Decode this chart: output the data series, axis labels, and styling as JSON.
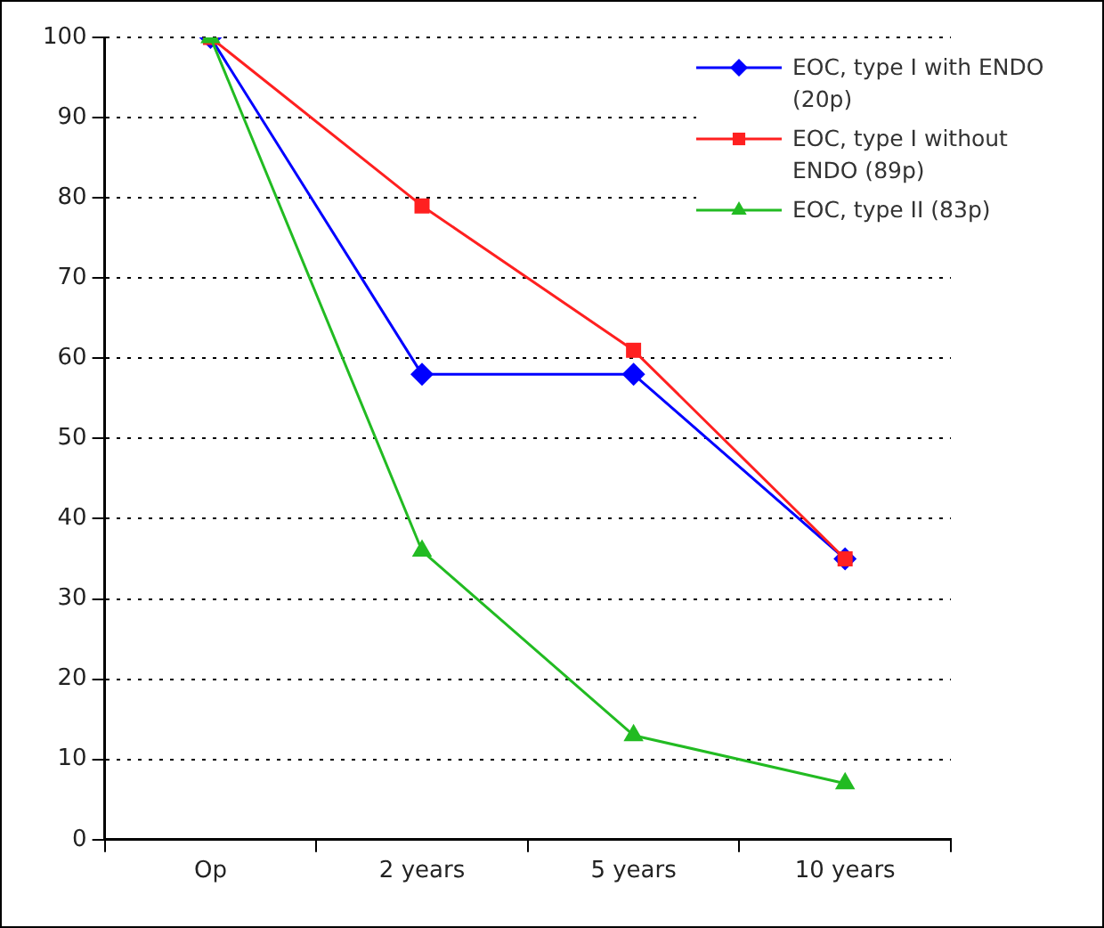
{
  "chart_data": {
    "type": "line",
    "categories": [
      "Op",
      "2 years",
      "5 years",
      "10 years"
    ],
    "series": [
      {
        "name": "EOC, type I with ENDO (20p)",
        "color": "#0000ff",
        "marker": "diamond",
        "values": [
          100,
          58,
          58,
          35
        ]
      },
      {
        "name": "EOC, type I without ENDO (89p)",
        "color": "#ff2020",
        "marker": "square",
        "values": [
          100,
          79,
          61,
          35
        ]
      },
      {
        "name": "EOC, type II (83p)",
        "color": "#22bb22",
        "marker": "triangle",
        "values": [
          100,
          36,
          13,
          7
        ]
      }
    ],
    "ylim": [
      0,
      100
    ],
    "yticks": [
      0,
      10,
      20,
      30,
      40,
      50,
      60,
      70,
      80,
      90,
      100
    ],
    "grid": "y",
    "legend": "top right",
    "line_style": "solid"
  }
}
